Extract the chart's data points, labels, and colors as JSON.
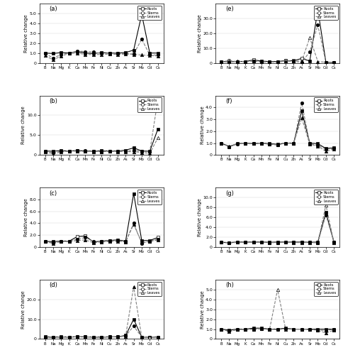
{
  "x_labels": [
    "B",
    "Na",
    "Mg",
    "K",
    "Ca",
    "Mn",
    "Fe",
    "Ni",
    "Cu",
    "Zn",
    "As",
    "Sr",
    "Mo",
    "Cd",
    "Cs"
  ],
  "panels": [
    {
      "label": "(a)",
      "ylim": [
        0,
        6.0
      ],
      "yticks": [
        0.0,
        1.0,
        2.0,
        3.0,
        4.0,
        5.0
      ],
      "ytick_labels": [
        "0",
        "1.0",
        "2.0",
        "3.0",
        "4.0",
        "5.0"
      ],
      "roots": [
        1.0,
        0.95,
        1.05,
        1.0,
        1.15,
        1.0,
        0.95,
        1.05,
        1.0,
        1.0,
        1.05,
        1.3,
        4.9,
        1.0,
        1.0
      ],
      "stems": [
        0.95,
        0.5,
        0.85,
        1.0,
        1.2,
        1.15,
        1.1,
        0.95,
        1.0,
        0.95,
        0.95,
        0.9,
        2.4,
        0.8,
        0.8
      ],
      "leaves": [
        0.75,
        0.3,
        0.7,
        0.95,
        1.0,
        0.85,
        0.85,
        0.85,
        0.9,
        0.85,
        0.9,
        0.85,
        0.8,
        0.75,
        0.7
      ],
      "roots_open": [
        false,
        false,
        false,
        false,
        false,
        false,
        false,
        false,
        false,
        false,
        false,
        false,
        false,
        false,
        false
      ],
      "stems_open": [
        false,
        false,
        false,
        false,
        false,
        false,
        false,
        false,
        false,
        false,
        false,
        false,
        false,
        false,
        false
      ],
      "leaves_open": [
        false,
        false,
        false,
        false,
        false,
        false,
        false,
        false,
        false,
        false,
        false,
        false,
        false,
        false,
        false
      ]
    },
    {
      "label": "(b)",
      "ylim": [
        0,
        15.0
      ],
      "yticks": [
        0.0,
        5.0,
        10.0
      ],
      "ytick_labels": [
        "0",
        "5.0",
        "10.0"
      ],
      "roots": [
        1.0,
        0.95,
        1.1,
        1.0,
        1.1,
        1.0,
        0.95,
        1.05,
        1.0,
        1.0,
        1.2,
        1.8,
        1.0,
        0.95,
        6.5
      ],
      "stems": [
        1.0,
        0.55,
        0.9,
        1.0,
        1.15,
        1.1,
        1.0,
        0.85,
        1.0,
        0.95,
        0.9,
        1.15,
        0.9,
        0.8,
        14.0
      ],
      "leaves": [
        0.8,
        0.25,
        0.75,
        0.95,
        0.95,
        0.9,
        0.85,
        0.85,
        0.9,
        0.85,
        0.85,
        0.8,
        0.65,
        0.4,
        4.3
      ],
      "roots_open": [
        false,
        false,
        false,
        false,
        false,
        false,
        false,
        false,
        false,
        false,
        false,
        false,
        false,
        false,
        false
      ],
      "stems_open": [
        false,
        false,
        false,
        false,
        false,
        false,
        false,
        false,
        false,
        false,
        false,
        false,
        false,
        false,
        true
      ],
      "leaves_open": [
        false,
        false,
        false,
        false,
        false,
        false,
        false,
        false,
        false,
        false,
        false,
        false,
        false,
        false,
        true
      ]
    },
    {
      "label": "(c)",
      "ylim": [
        0,
        10.0
      ],
      "yticks": [
        0.0,
        2.0,
        4.0,
        6.0,
        8.0
      ],
      "ytick_labels": [
        "0",
        "2.0",
        "4.0",
        "6.0",
        "8.0"
      ],
      "roots": [
        0.95,
        0.9,
        1.0,
        1.0,
        1.75,
        1.85,
        0.85,
        1.0,
        1.1,
        1.2,
        1.0,
        9.0,
        1.1,
        1.1,
        1.6
      ],
      "stems": [
        0.9,
        0.7,
        0.95,
        1.0,
        1.3,
        1.6,
        0.9,
        1.0,
        1.05,
        1.1,
        0.9,
        4.0,
        0.6,
        1.0,
        1.35
      ],
      "leaves": [
        0.9,
        0.6,
        0.9,
        0.9,
        1.1,
        1.2,
        0.7,
        0.85,
        0.9,
        1.0,
        0.85,
        3.8,
        0.8,
        0.9,
        1.2
      ],
      "roots_open": [
        false,
        false,
        false,
        false,
        true,
        true,
        false,
        false,
        false,
        false,
        false,
        false,
        false,
        false,
        true
      ],
      "stems_open": [
        false,
        false,
        false,
        false,
        false,
        false,
        false,
        false,
        false,
        false,
        false,
        false,
        false,
        false,
        false
      ],
      "leaves_open": [
        false,
        false,
        false,
        false,
        false,
        false,
        false,
        false,
        false,
        false,
        false,
        false,
        false,
        false,
        false
      ]
    },
    {
      "label": "(d)",
      "ylim": [
        0,
        30.0
      ],
      "yticks": [
        0.0,
        10.0,
        20.0
      ],
      "ytick_labels": [
        "0",
        "10.0",
        "20.0"
      ],
      "roots": [
        1.1,
        1.0,
        1.1,
        1.0,
        1.15,
        1.1,
        1.0,
        1.0,
        1.1,
        1.15,
        1.8,
        10.0,
        1.0,
        0.9,
        1.05
      ],
      "stems": [
        1.0,
        0.85,
        1.0,
        1.0,
        1.2,
        1.1,
        0.95,
        0.95,
        1.1,
        1.15,
        1.6,
        6.5,
        1.0,
        0.9,
        1.0
      ],
      "leaves": [
        0.9,
        0.8,
        0.95,
        0.95,
        1.1,
        1.1,
        0.9,
        0.9,
        1.0,
        1.1,
        1.4,
        26.5,
        0.9,
        0.9,
        0.95
      ],
      "roots_open": [
        false,
        false,
        false,
        false,
        false,
        false,
        false,
        false,
        false,
        false,
        false,
        false,
        false,
        false,
        false
      ],
      "stems_open": [
        false,
        false,
        false,
        false,
        false,
        false,
        false,
        false,
        false,
        false,
        false,
        false,
        false,
        false,
        false
      ],
      "leaves_open": [
        false,
        false,
        false,
        false,
        false,
        false,
        false,
        false,
        false,
        false,
        false,
        false,
        false,
        true,
        false
      ]
    },
    {
      "label": "(e)",
      "ylim": [
        0,
        40.0
      ],
      "yticks": [
        0.0,
        10.0,
        20.0,
        30.0
      ],
      "ytick_labels": [
        "0",
        "10.0",
        "20.0",
        "30.0"
      ],
      "roots": [
        1.0,
        0.75,
        1.0,
        1.0,
        2.0,
        1.3,
        0.9,
        1.0,
        1.5,
        1.5,
        3.0,
        1.3,
        36.0,
        0.5,
        0.3
      ],
      "stems": [
        0.85,
        1.5,
        0.8,
        0.95,
        1.3,
        0.9,
        0.7,
        0.7,
        1.5,
        1.1,
        0.4,
        7.5,
        25.5,
        0.5,
        0.3
      ],
      "leaves": [
        1.0,
        1.1,
        1.05,
        1.0,
        1.1,
        0.65,
        0.65,
        0.65,
        1.1,
        1.2,
        1.3,
        17.0,
        1.0,
        0.45,
        0.25
      ],
      "roots_open": [
        false,
        false,
        false,
        false,
        true,
        false,
        false,
        false,
        true,
        true,
        true,
        false,
        false,
        false,
        false
      ],
      "stems_open": [
        false,
        true,
        false,
        false,
        false,
        false,
        false,
        false,
        true,
        false,
        false,
        false,
        false,
        false,
        false
      ],
      "leaves_open": [
        false,
        false,
        false,
        false,
        false,
        false,
        false,
        false,
        false,
        false,
        false,
        true,
        false,
        false,
        false
      ]
    },
    {
      "label": "(f)",
      "ylim": [
        0,
        5.0
      ],
      "yticks": [
        0.0,
        1.0,
        2.0,
        3.0,
        4.0
      ],
      "ytick_labels": [
        "0",
        "1.0",
        "2.0",
        "3.0",
        "4.0"
      ],
      "roots": [
        1.0,
        0.7,
        0.95,
        1.0,
        0.95,
        1.0,
        0.95,
        0.9,
        1.0,
        1.0,
        3.7,
        1.0,
        0.95,
        0.55,
        0.6
      ],
      "stems": [
        1.0,
        0.7,
        0.9,
        1.0,
        0.95,
        1.0,
        0.9,
        0.85,
        1.0,
        0.95,
        4.4,
        0.95,
        0.8,
        0.5,
        0.55
      ],
      "leaves": [
        1.0,
        0.75,
        0.95,
        1.0,
        1.0,
        1.0,
        0.9,
        0.85,
        1.0,
        1.0,
        3.1,
        0.9,
        0.75,
        0.3,
        0.5
      ],
      "roots_open": [
        false,
        false,
        false,
        false,
        false,
        false,
        false,
        false,
        false,
        false,
        false,
        false,
        false,
        false,
        false
      ],
      "stems_open": [
        false,
        false,
        false,
        false,
        false,
        false,
        false,
        false,
        false,
        false,
        false,
        false,
        false,
        false,
        false
      ],
      "leaves_open": [
        false,
        false,
        false,
        false,
        false,
        false,
        false,
        false,
        false,
        false,
        false,
        false,
        false,
        false,
        false
      ]
    },
    {
      "label": "(g)",
      "ylim": [
        0,
        12.0
      ],
      "yticks": [
        0.0,
        2.0,
        4.0,
        6.0,
        8.0,
        10.0
      ],
      "ytick_labels": [
        "0",
        "2.0",
        "4.0",
        "6.0",
        "8.0",
        "10.0"
      ],
      "roots": [
        0.95,
        0.9,
        1.0,
        1.0,
        1.0,
        1.0,
        0.95,
        1.0,
        1.0,
        1.0,
        1.0,
        0.95,
        1.0,
        7.0,
        1.0
      ],
      "stems": [
        0.95,
        0.85,
        0.95,
        1.0,
        0.95,
        1.0,
        0.9,
        0.9,
        1.0,
        0.95,
        0.95,
        0.95,
        0.9,
        6.5,
        1.0
      ],
      "leaves": [
        0.95,
        0.8,
        0.95,
        0.95,
        0.95,
        0.95,
        0.9,
        0.9,
        0.95,
        0.9,
        0.9,
        0.9,
        0.85,
        8.5,
        0.9
      ],
      "roots_open": [
        false,
        false,
        false,
        false,
        false,
        false,
        false,
        false,
        false,
        false,
        false,
        false,
        false,
        false,
        false
      ],
      "stems_open": [
        false,
        false,
        false,
        false,
        false,
        false,
        false,
        false,
        false,
        false,
        false,
        false,
        false,
        false,
        false
      ],
      "leaves_open": [
        false,
        false,
        false,
        false,
        false,
        false,
        false,
        false,
        false,
        false,
        false,
        false,
        false,
        true,
        false
      ]
    },
    {
      "label": "(h)",
      "ylim": [
        0,
        6.0
      ],
      "yticks": [
        0.0,
        1.0,
        2.0,
        3.0,
        4.0,
        5.0
      ],
      "ytick_labels": [
        "0",
        "1.0",
        "2.0",
        "3.0",
        "4.0",
        "5.0"
      ],
      "roots": [
        1.0,
        0.9,
        1.0,
        1.0,
        1.1,
        1.1,
        1.0,
        1.0,
        1.1,
        1.0,
        1.0,
        1.0,
        1.0,
        1.0,
        1.0
      ],
      "stems": [
        1.0,
        0.8,
        0.95,
        1.0,
        1.0,
        1.05,
        1.0,
        0.95,
        1.05,
        1.0,
        1.0,
        1.0,
        0.9,
        0.85,
        1.0
      ],
      "leaves": [
        1.0,
        0.75,
        0.95,
        0.95,
        1.0,
        1.05,
        0.95,
        5.0,
        1.0,
        1.0,
        1.0,
        0.95,
        0.9,
        0.6,
        0.9
      ],
      "roots_open": [
        false,
        false,
        false,
        false,
        false,
        false,
        false,
        false,
        false,
        false,
        false,
        false,
        false,
        false,
        false
      ],
      "stems_open": [
        false,
        false,
        false,
        false,
        false,
        false,
        false,
        false,
        false,
        false,
        false,
        false,
        false,
        false,
        false
      ],
      "leaves_open": [
        false,
        false,
        false,
        false,
        false,
        false,
        false,
        true,
        false,
        false,
        false,
        false,
        false,
        false,
        false
      ]
    }
  ]
}
